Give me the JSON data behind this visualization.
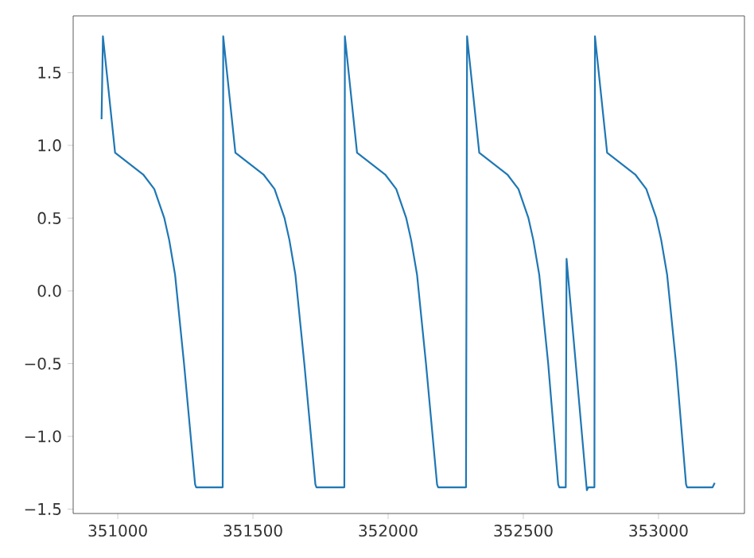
{
  "chart_data": {
    "type": "line",
    "x": [
      350940,
      350945,
      350990,
      351094,
      351135,
      351172,
      351190,
      351212,
      351245,
      351286,
      351290,
      351388,
      351390,
      351435,
      351539,
      351580,
      351617,
      351635,
      351657,
      351690,
      351731,
      351735,
      351838,
      351840,
      351885,
      351989,
      352030,
      352067,
      352085,
      352107,
      352140,
      352181,
      352185,
      352288,
      352292,
      352337,
      352441,
      352482,
      352519,
      352537,
      352559,
      352592,
      352629,
      352633,
      352657,
      352660,
      352735,
      352740,
      352763,
      352765,
      352810,
      352914,
      352955,
      352992,
      353010,
      353032,
      353065,
      353102,
      353106,
      353200,
      353208
    ],
    "series": [
      {
        "color": "#1f77b4",
        "values": [
          1.18,
          1.75,
          0.95,
          0.8,
          0.7,
          0.5,
          0.35,
          0.11,
          -0.5,
          -1.33,
          -1.35,
          -1.35,
          1.75,
          0.95,
          0.8,
          0.7,
          0.5,
          0.35,
          0.11,
          -0.5,
          -1.33,
          -1.35,
          -1.35,
          1.75,
          0.95,
          0.8,
          0.7,
          0.5,
          0.35,
          0.11,
          -0.5,
          -1.33,
          -1.35,
          -1.35,
          1.75,
          0.95,
          0.8,
          0.7,
          0.5,
          0.35,
          0.11,
          -0.5,
          -1.33,
          -1.35,
          -1.35,
          0.22,
          -1.37,
          -1.35,
          -1.35,
          1.75,
          0.95,
          0.8,
          0.7,
          0.5,
          0.35,
          0.11,
          -0.5,
          -1.33,
          -1.35,
          -1.35,
          -1.32
        ]
      }
    ],
    "xlim": [
      350835,
      353318
    ],
    "ylim": [
      -1.53,
      1.89
    ],
    "xticks": [
      351000,
      351500,
      352000,
      352500,
      353000
    ],
    "yticks": [
      {
        "value": -1.5,
        "label": "−1.5"
      },
      {
        "value": -1.0,
        "label": "−1.0"
      },
      {
        "value": -0.5,
        "label": "−0.5"
      },
      {
        "value": 0.0,
        "label": "0.0"
      },
      {
        "value": 0.5,
        "label": "0.5"
      },
      {
        "value": 1.0,
        "label": "1.0"
      },
      {
        "value": 1.5,
        "label": "1.5"
      }
    ],
    "grid": false,
    "line_style": "solid"
  }
}
